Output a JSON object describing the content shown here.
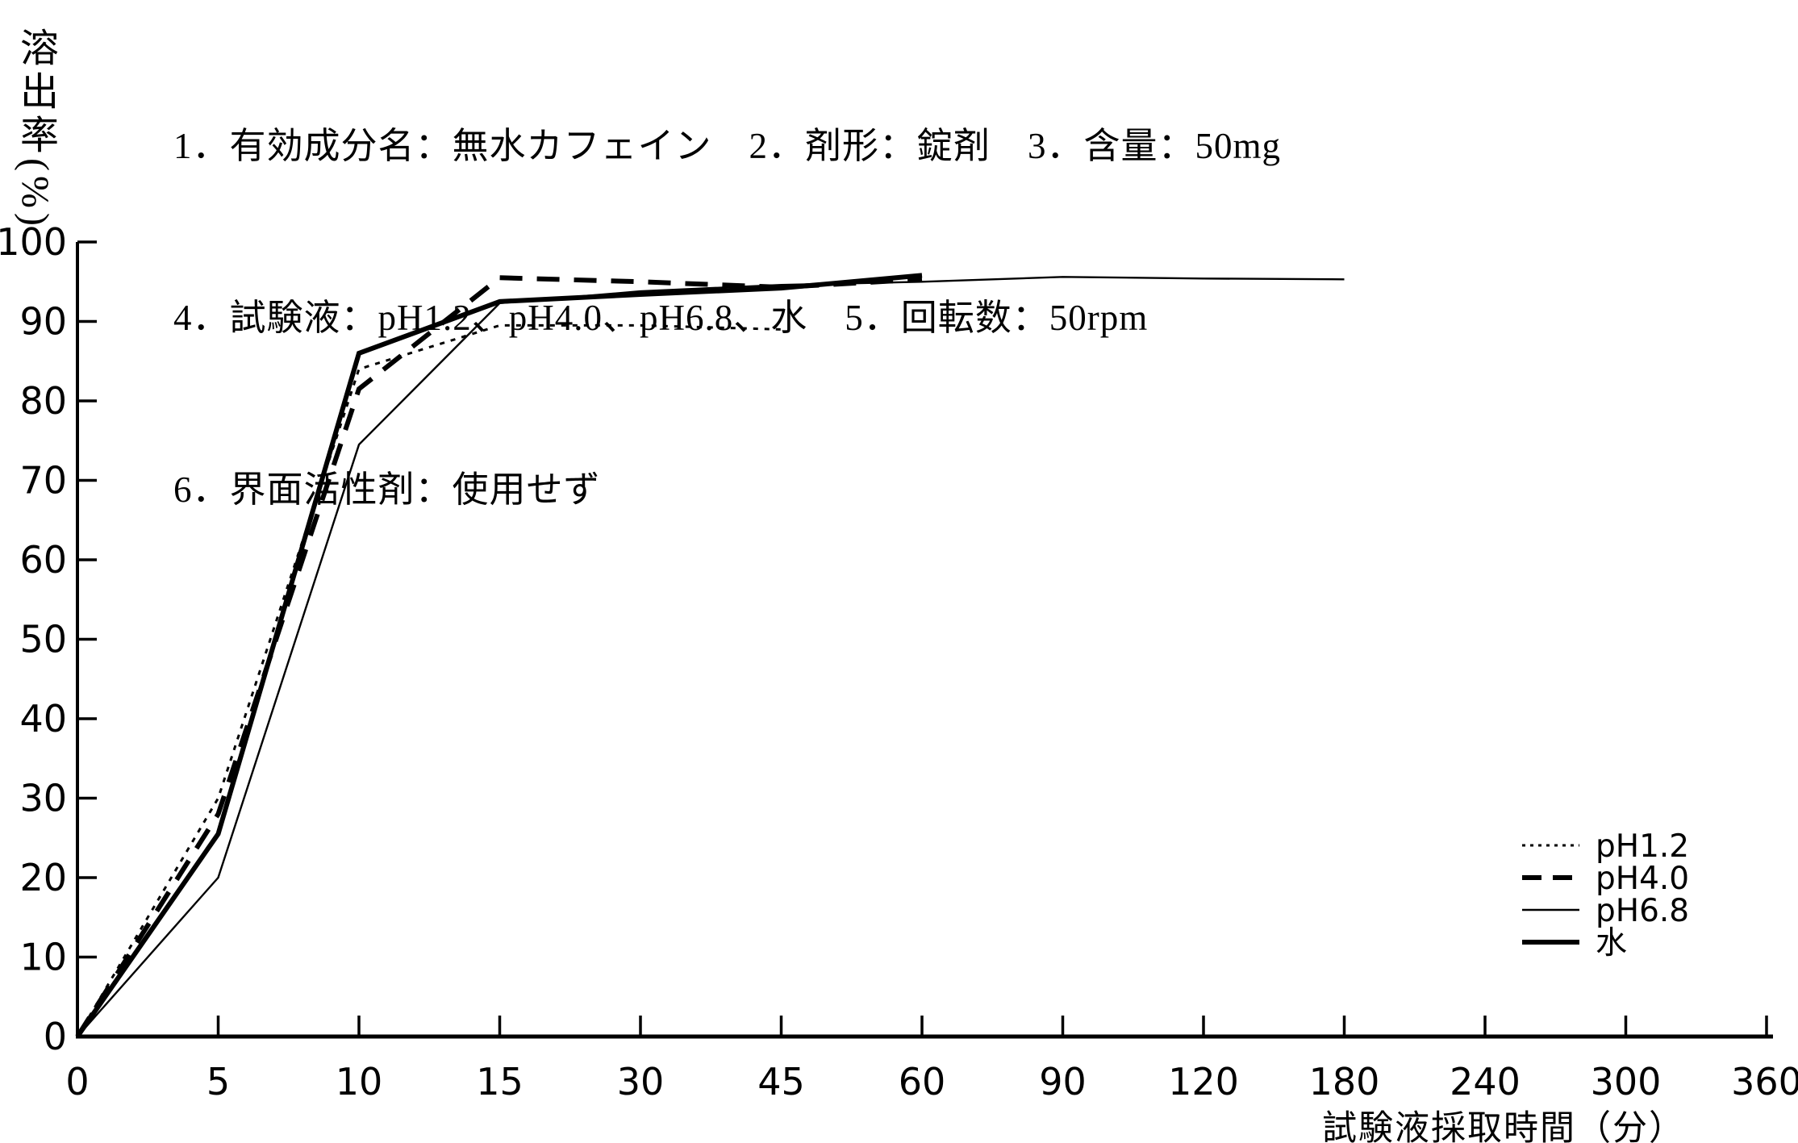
{
  "header": {
    "lines": [
      "1．有効成分名：無水カフェイン　2．剤形：錠剤　3．含量：50mg",
      "4．試験液：pH1.2、pH4.0、pH6.8、水　5．回転数：50rpm",
      "6．界面活性剤：使用せず"
    ]
  },
  "chart_data": {
    "type": "line",
    "title": "",
    "xlabel": "試験液採取時間（分）",
    "ylabel": "溶出率(%)",
    "x_axis_note": "non-linear time axis: ticks evenly spaced",
    "x_ticks": [
      0,
      5,
      10,
      15,
      30,
      45,
      60,
      90,
      120,
      180,
      240,
      300,
      360
    ],
    "x_tick_labels": [
      "0",
      "5",
      "10",
      "15",
      "30",
      "45",
      "60",
      "90",
      "120",
      "180",
      "240",
      "300",
      "360"
    ],
    "y_ticks": [
      0,
      10,
      20,
      30,
      40,
      50,
      60,
      70,
      80,
      90,
      100
    ],
    "ylim": [
      0,
      100
    ],
    "grid": false,
    "legend_position": "lower right",
    "line_color": "#000000",
    "series": [
      {
        "name": "pH1.2",
        "style": "dotted",
        "weight": "thin",
        "points": [
          [
            0,
            0
          ],
          [
            5,
            30
          ],
          [
            10,
            84
          ],
          [
            15,
            89.5
          ],
          [
            30,
            89.5
          ],
          [
            45,
            89
          ]
        ]
      },
      {
        "name": "pH4.0",
        "style": "dashed",
        "weight": "thick",
        "points": [
          [
            0,
            0
          ],
          [
            5,
            28
          ],
          [
            10,
            81.5
          ],
          [
            15,
            95.5
          ],
          [
            30,
            95
          ],
          [
            45,
            94.3
          ],
          [
            60,
            95.3
          ]
        ]
      },
      {
        "name": "pH6.8",
        "style": "solid",
        "weight": "thin",
        "points": [
          [
            0,
            0
          ],
          [
            5,
            20
          ],
          [
            10,
            74.5
          ],
          [
            15,
            92.3
          ],
          [
            30,
            93.8
          ],
          [
            45,
            94.6
          ],
          [
            60,
            95
          ],
          [
            90,
            95.6
          ],
          [
            120,
            95.4
          ],
          [
            180,
            95.3
          ]
        ]
      },
      {
        "name": "水",
        "style": "solid",
        "weight": "thick",
        "points": [
          [
            0,
            0
          ],
          [
            5,
            25.5
          ],
          [
            10,
            86
          ],
          [
            15,
            92.5
          ],
          [
            30,
            93.4
          ],
          [
            45,
            94.2
          ],
          [
            60,
            95.8
          ]
        ]
      }
    ]
  }
}
